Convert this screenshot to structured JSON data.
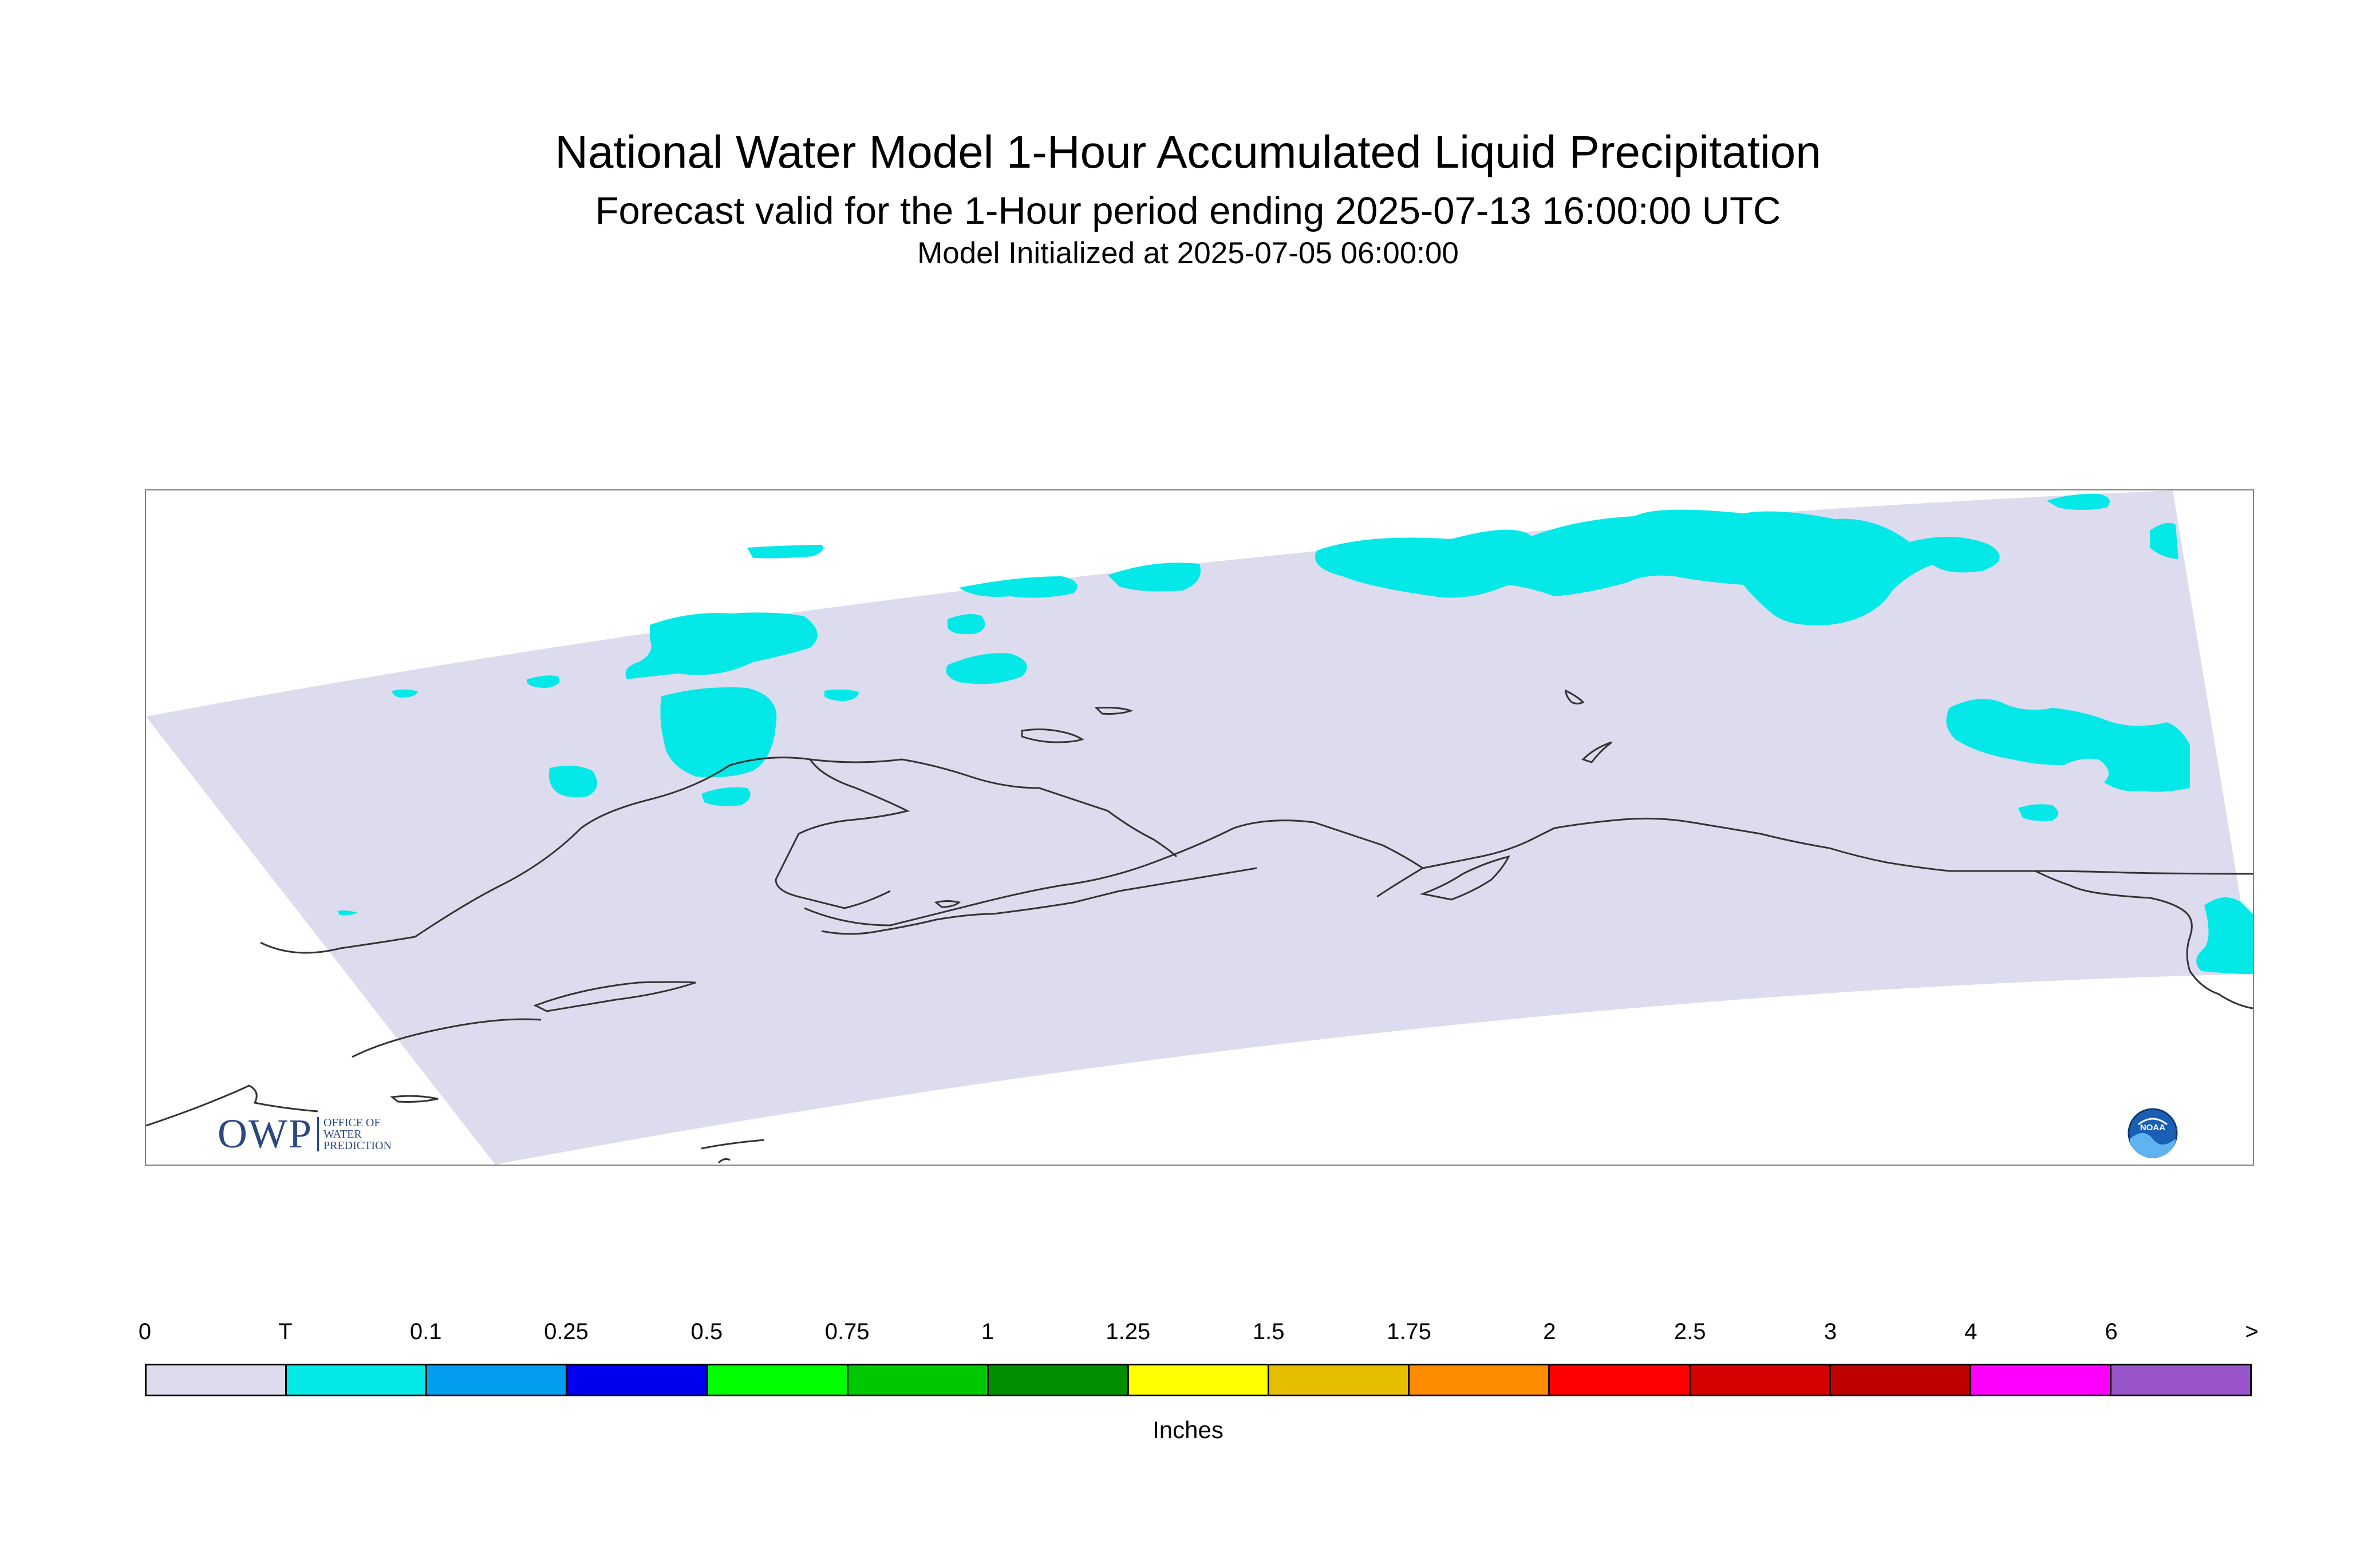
{
  "titles": {
    "main": "National Water Model 1-Hour Accumulated Liquid Precipitation",
    "sub": "Forecast valid for the 1-Hour period ending 2025-07-13 16:00:00 UTC",
    "init": "Model Initialized at 2025-07-05 06:00:00"
  },
  "map": {
    "domain_fill_color": "#dcdcee",
    "precip_color": "#04e8e8",
    "coastline_color": "#333333",
    "frame_color": "#808080",
    "owp_logo": {
      "big_text": "OWP",
      "line1": "OFFICE OF",
      "line2": "WATER",
      "line3": "PREDICTION"
    },
    "noaa_logo_text": "NOAA"
  },
  "legend": {
    "tick_labels": [
      "0",
      "T",
      "0.1",
      "0.25",
      "0.5",
      "0.75",
      "1",
      "1.25",
      "1.5",
      "1.75",
      "2",
      "2.5",
      "3",
      "4",
      "6",
      ">"
    ],
    "colors": [
      "#dcdcee",
      "#04e8e8",
      "#049ef0",
      "#0000f0",
      "#00ff00",
      "#00c800",
      "#008f00",
      "#ffff00",
      "#e6be00",
      "#ff8c00",
      "#ff0000",
      "#d70000",
      "#be0000",
      "#ff00ff",
      "#9955c9"
    ],
    "units": "Inches"
  }
}
